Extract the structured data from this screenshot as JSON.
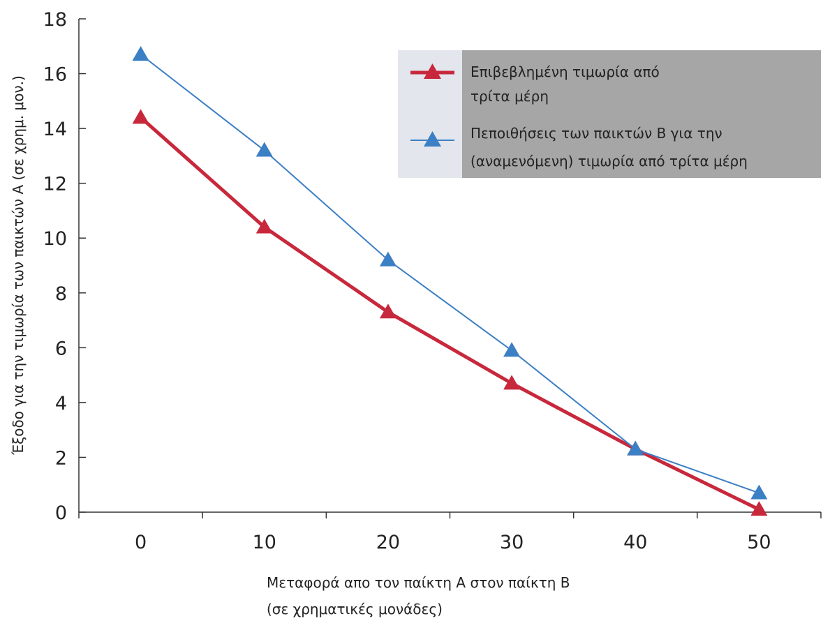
{
  "chart_data": {
    "type": "line",
    "x": [
      0,
      10,
      20,
      30,
      40,
      50
    ],
    "xticks": [
      "0",
      "10",
      "20",
      "30",
      "40",
      "50"
    ],
    "xlim": [
      -5,
      55
    ],
    "ylim": [
      0,
      18
    ],
    "yticks": [
      "0",
      "2",
      "4",
      "6",
      "8",
      "10",
      "12",
      "14",
      "16",
      "18"
    ],
    "ylabel": "Έξοδο για την τιμωρία των παικτών Α (σε χρημ. μον.)",
    "xlabel_line1": "Μεταφορά απο τον παίκτη Α στον παίκτη Β",
    "xlabel_line2": "(σε χρηματικές μονάδες)",
    "grid": false,
    "legend_position": "top-right",
    "series": [
      {
        "name_line1": "Επιβεβλημένη τιμωρία από",
        "name_line2": "τρίτα μέρη",
        "values": [
          14.4,
          10.4,
          7.3,
          4.7,
          2.3,
          0.1
        ],
        "color": "#c8283c",
        "marker": "triangle"
      },
      {
        "name_line1": "Πεποιθήσεις των παικτών Β για την",
        "name_line2": "(αναμενόμενη) τιμωρία από τρίτα μέρη",
        "values": [
          16.7,
          13.2,
          9.2,
          5.9,
          2.3,
          0.7
        ],
        "color": "#3b7fc4",
        "marker": "triangle"
      }
    ]
  }
}
